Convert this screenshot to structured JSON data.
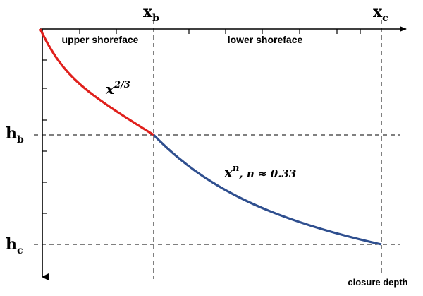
{
  "diagram": {
    "axis_labels": {
      "xb": {
        "base": "x",
        "sub": "b"
      },
      "xc": {
        "base": "x",
        "sub": "c"
      },
      "hb": {
        "base": "h",
        "sub": "b"
      },
      "hc": {
        "base": "h",
        "sub": "c"
      }
    },
    "zones": {
      "upper": "upper shoreface",
      "lower": "lower shoreface"
    },
    "curve_labels": {
      "upper": {
        "base": "x",
        "exp": "2/3"
      },
      "lower": {
        "base": "x",
        "exp": "n",
        "note": ",  n ≈ 0.33"
      }
    },
    "closure_label": "closure depth",
    "colors": {
      "upper_curve": "#e0201c",
      "lower_curve": "#2f4f8f",
      "axes": "#000000",
      "guides": "#000000"
    }
  }
}
